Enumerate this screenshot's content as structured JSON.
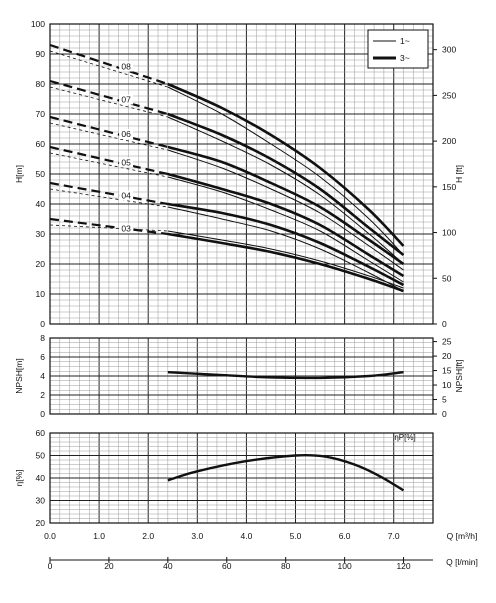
{
  "chart_data": [
    {
      "type": "line",
      "name": "head-chart",
      "ylabel_left": "H[m]",
      "ylabel_right": "H [ft]",
      "ylim": [
        0,
        100
      ],
      "yticks_left": [
        "0",
        "10",
        "20",
        "30",
        "40",
        "50",
        "60",
        "70",
        "80",
        "90",
        "100"
      ],
      "yticks_right": [
        "0",
        "50",
        "100",
        "150",
        "200",
        "250",
        "300"
      ],
      "legend": {
        "placement": "top-right",
        "entries": [
          {
            "label": "1~",
            "style": "thin"
          },
          {
            "label": "3~",
            "style": "thick"
          }
        ]
      },
      "grid": true,
      "curves": [
        {
          "label": "08",
          "dash_x": [
            0,
            2.4
          ],
          "dash_y": [
            93,
            80
          ],
          "thick": [
            [
              2.4,
              80
            ],
            [
              3.5,
              72
            ],
            [
              4.5,
              63
            ],
            [
              5.5,
              52
            ],
            [
              6.5,
              38
            ],
            [
              7.2,
              26
            ]
          ],
          "thin": [
            [
              2.4,
              79
            ],
            [
              3.5,
              70
            ],
            [
              4.5,
              60
            ],
            [
              5.5,
              49
            ],
            [
              6.5,
              35
            ],
            [
              7.2,
              23
            ]
          ]
        },
        {
          "label": "07",
          "dash_x": [
            0,
            2.4
          ],
          "dash_y": [
            81,
            70
          ],
          "thick": [
            [
              2.4,
              70
            ],
            [
              3.5,
              63
            ],
            [
              4.5,
              55
            ],
            [
              5.5,
              45
            ],
            [
              6.5,
              32
            ],
            [
              7.2,
              23
            ]
          ],
          "thin": [
            [
              2.4,
              69
            ],
            [
              3.5,
              61
            ],
            [
              4.5,
              53
            ],
            [
              5.5,
              43
            ],
            [
              6.5,
              30
            ],
            [
              7.2,
              20
            ]
          ]
        },
        {
          "label": "06",
          "dash_x": [
            0,
            2.4
          ],
          "dash_y": [
            69,
            59
          ],
          "thick": [
            [
              2.4,
              59
            ],
            [
              3.5,
              54
            ],
            [
              4.5,
              47
            ],
            [
              5.5,
              39
            ],
            [
              6.5,
              28
            ],
            [
              7.2,
              20
            ]
          ],
          "thin": [
            [
              2.4,
              58
            ],
            [
              3.5,
              52
            ],
            [
              4.5,
              45
            ],
            [
              5.5,
              37
            ],
            [
              6.5,
              26
            ],
            [
              7.2,
              18
            ]
          ]
        },
        {
          "label": "05",
          "dash_x": [
            0,
            2.4
          ],
          "dash_y": [
            59,
            50
          ],
          "thick": [
            [
              2.4,
              50
            ],
            [
              3.5,
              45
            ],
            [
              4.5,
              40
            ],
            [
              5.5,
              33
            ],
            [
              6.5,
              23
            ],
            [
              7.2,
              16
            ]
          ],
          "thin": [
            [
              2.4,
              49
            ],
            [
              3.5,
              44
            ],
            [
              4.5,
              38
            ],
            [
              5.5,
              31
            ],
            [
              6.5,
              21
            ],
            [
              7.2,
              14
            ]
          ]
        },
        {
          "label": "04",
          "dash_x": [
            0,
            2.4
          ],
          "dash_y": [
            47,
            40
          ],
          "thick": [
            [
              2.4,
              40
            ],
            [
              3.5,
              37
            ],
            [
              4.5,
              33
            ],
            [
              5.5,
              27
            ],
            [
              6.5,
              19
            ],
            [
              7.2,
              13
            ]
          ],
          "thin": [
            [
              2.4,
              39
            ],
            [
              3.5,
              35
            ],
            [
              4.5,
              31
            ],
            [
              5.5,
              25
            ],
            [
              6.5,
              17
            ],
            [
              7.2,
              11
            ]
          ]
        },
        {
          "label": "03",
          "dash_x": [
            0,
            2.4
          ],
          "dash_y": [
            35,
            30
          ],
          "thick": [
            [
              2.4,
              30
            ],
            [
              3.5,
              27
            ],
            [
              4.5,
              24
            ],
            [
              5.5,
              20
            ],
            [
              6.5,
              15
            ],
            [
              7.2,
              11
            ]
          ],
          "thin": [
            [
              2.4,
              31
            ],
            [
              3.5,
              28
            ],
            [
              4.5,
              25
            ],
            [
              5.5,
              21
            ],
            [
              6.5,
              16
            ],
            [
              7.2,
              12
            ]
          ]
        }
      ],
      "extra_dashed": [
        {
          "dash_x": [
            0,
            2.4
          ],
          "dash_y": [
            91,
            79
          ]
        },
        {
          "dash_x": [
            0,
            2.4
          ],
          "dash_y": [
            60,
            51
          ]
        },
        {
          "dash_x": [
            0,
            2.4
          ],
          "dash_y": [
            46,
            41
          ]
        },
        {
          "dash_x": [
            0,
            2.4
          ],
          "dash_y": [
            36,
            31
          ]
        }
      ]
    },
    {
      "type": "line",
      "name": "npsh-chart",
      "ylabel_left": "NPSH[m]",
      "ylabel_right": "NPSH[ft]",
      "ylim": [
        0,
        8
      ],
      "yticks_left": [
        "0",
        "2",
        "4",
        "6",
        "8"
      ],
      "yticks_right": [
        "0",
        "5",
        "10",
        "15",
        "20",
        "25"
      ],
      "grid": true,
      "series": [
        {
          "points": [
            [
              2.4,
              4.4
            ],
            [
              3.5,
              4.1
            ],
            [
              4.5,
              3.85
            ],
            [
              5.5,
              3.8
            ],
            [
              6.5,
              4.0
            ],
            [
              7.2,
              4.4
            ]
          ]
        }
      ]
    },
    {
      "type": "line",
      "name": "efficiency-chart",
      "ylabel_left": "η[%]",
      "ylim": [
        20,
        60
      ],
      "yticks_left": [
        "20",
        "30",
        "40",
        "50",
        "60"
      ],
      "annotation": "ηP[%]",
      "grid": true,
      "series": [
        {
          "points": [
            [
              2.4,
              39
            ],
            [
              3.0,
              43
            ],
            [
              4.0,
              47.5
            ],
            [
              5.0,
              50
            ],
            [
              5.6,
              49.5
            ],
            [
              6.2,
              46
            ],
            [
              6.7,
              41
            ],
            [
              7.2,
              34.5
            ]
          ]
        }
      ]
    }
  ],
  "x_axis": {
    "xlim": [
      0,
      7.8
    ],
    "q_m3h_ticks": [
      "0.0",
      "1.0",
      "2.0",
      "3.0",
      "4.0",
      "5.0",
      "6.0",
      "7.0"
    ],
    "q_m3h_label": "Q [m³/h]",
    "q_lmin_ticks": [
      "0",
      "20",
      "40",
      "60",
      "80",
      "100",
      "120"
    ],
    "q_lmin_label": "Q [l/min]"
  }
}
